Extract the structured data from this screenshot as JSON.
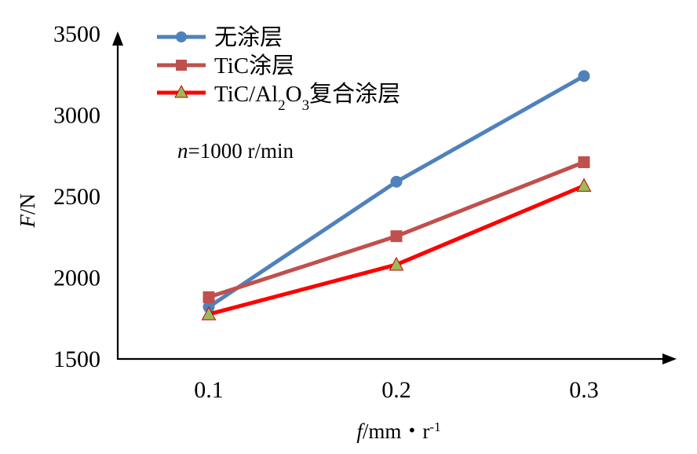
{
  "chart_data": {
    "type": "line",
    "x": [
      0.1,
      0.2,
      0.3
    ],
    "x_tick_labels": [
      "0.1",
      "0.2",
      "0.3"
    ],
    "y_tick_labels": [
      "1500",
      "2000",
      "2500",
      "3000",
      "3500"
    ],
    "ylim": [
      1500,
      3500
    ],
    "grid": false,
    "legend_placement": "top-left",
    "xlabel": {
      "var": "f",
      "unit": "/mm・r",
      "sup": "-1"
    },
    "ylabel": {
      "var": "F",
      "unit": "/N"
    },
    "annotation": {
      "var": "n",
      "text": "=1000 r/min"
    },
    "series": [
      {
        "name": "无涂层",
        "values": [
          1820,
          2590,
          3240
        ],
        "color": "#4f81bd",
        "marker": "circle"
      },
      {
        "name": "TiC涂层",
        "values": [
          1880,
          2255,
          2710
        ],
        "color": "#c0504d",
        "marker": "square"
      },
      {
        "name_parts": [
          "TiC/Al",
          "2",
          "O",
          "3",
          "复合涂层"
        ],
        "values": [
          1775,
          2080,
          2565
        ],
        "color": "#ff0000",
        "marker": "triangle",
        "marker_fill": "#9bbb59"
      }
    ]
  }
}
